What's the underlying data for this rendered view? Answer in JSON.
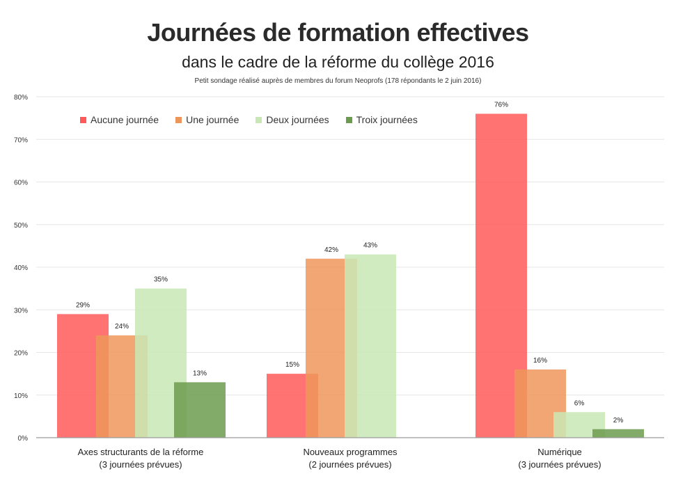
{
  "header": {
    "title": "Journées de formation effectives",
    "subtitle": "dans le cadre de la réforme du collège 2016",
    "note": "Petit sondage réalisé auprès de membres du forum Neoprofs (178 répondants le 2 juin 2016)"
  },
  "colors": {
    "aucune": "#ff5a5a",
    "une": "#ee965a",
    "deux": "#c9e7b5",
    "troix": "#6c9b4e"
  },
  "chart_data": {
    "type": "bar",
    "title": "Journées de formation effectives",
    "subtitle": "dans le cadre de la réforme du collège 2016",
    "categories": [
      [
        "Axes structurants de la réforme",
        "(3 journées prévues)"
      ],
      [
        "Nouveaux programmes",
        "(2 journées prévues)"
      ],
      [
        "Numérique",
        "(3 journées prévues)"
      ]
    ],
    "series": [
      {
        "name": "Aucune journée",
        "values": [
          29,
          15,
          76
        ],
        "labels": [
          "29%",
          "15%",
          "76%"
        ]
      },
      {
        "name": "Une journée",
        "values": [
          24,
          42,
          16
        ],
        "labels": [
          "24%",
          "42%",
          "16%"
        ]
      },
      {
        "name": "Deux journées",
        "values": [
          35,
          43,
          6
        ],
        "labels": [
          "35%",
          "43%",
          "6%"
        ]
      },
      {
        "name": "Troix journées",
        "values": [
          13,
          null,
          2
        ],
        "labels": [
          "13%",
          "",
          "2%"
        ]
      }
    ],
    "ylim": [
      0,
      80
    ],
    "yticks": [
      "0%",
      "10%",
      "20%",
      "30%",
      "40%",
      "50%",
      "60%",
      "70%",
      "80%"
    ],
    "grid": true,
    "legend_position": "top-left"
  }
}
